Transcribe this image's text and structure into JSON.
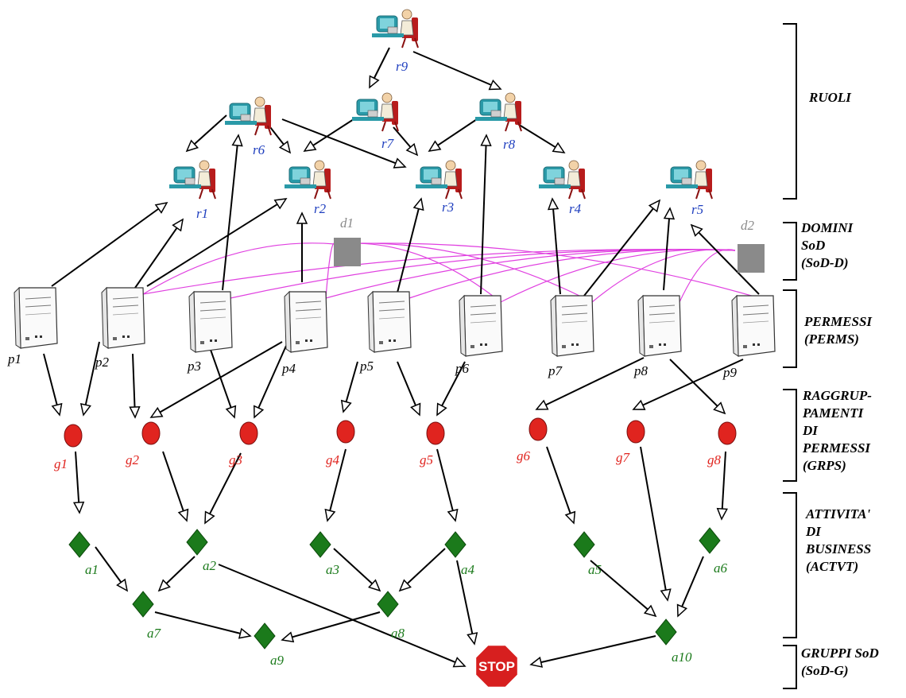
{
  "roles": [
    {
      "id": "r1",
      "label": "r1"
    },
    {
      "id": "r2",
      "label": "r2"
    },
    {
      "id": "r3",
      "label": "r3"
    },
    {
      "id": "r4",
      "label": "r4"
    },
    {
      "id": "r5",
      "label": "r5"
    },
    {
      "id": "r6",
      "label": "r6"
    },
    {
      "id": "r7",
      "label": "r7"
    },
    {
      "id": "r8",
      "label": "r8"
    },
    {
      "id": "r9",
      "label": "r9"
    }
  ],
  "domains": [
    {
      "id": "d1",
      "label": "d1"
    },
    {
      "id": "d2",
      "label": "d2"
    }
  ],
  "permissions": [
    {
      "id": "p1",
      "label": "p1"
    },
    {
      "id": "p2",
      "label": "p2"
    },
    {
      "id": "p3",
      "label": "p3"
    },
    {
      "id": "p4",
      "label": "p4"
    },
    {
      "id": "p5",
      "label": "p5"
    },
    {
      "id": "p6",
      "label": "p6"
    },
    {
      "id": "p7",
      "label": "p7"
    },
    {
      "id": "p8",
      "label": "p8"
    },
    {
      "id": "p9",
      "label": "p9"
    }
  ],
  "groups": [
    {
      "id": "g1",
      "label": "g1"
    },
    {
      "id": "g2",
      "label": "g2"
    },
    {
      "id": "g3",
      "label": "g3"
    },
    {
      "id": "g4",
      "label": "g4"
    },
    {
      "id": "g5",
      "label": "g5"
    },
    {
      "id": "g6",
      "label": "g6"
    },
    {
      "id": "g7",
      "label": "g7"
    },
    {
      "id": "g8",
      "label": "g8"
    }
  ],
  "activities": [
    {
      "id": "a1",
      "label": "a1"
    },
    {
      "id": "a2",
      "label": "a2"
    },
    {
      "id": "a3",
      "label": "a3"
    },
    {
      "id": "a4",
      "label": "a4"
    },
    {
      "id": "a5",
      "label": "a5"
    },
    {
      "id": "a6",
      "label": "a6"
    },
    {
      "id": "a7",
      "label": "a7"
    },
    {
      "id": "a8",
      "label": "a8"
    },
    {
      "id": "a9",
      "label": "a9"
    },
    {
      "id": "a10",
      "label": "a10"
    }
  ],
  "stop_sign": {
    "label": "STOP"
  },
  "sections": {
    "ruoli": "RUOLI",
    "domini": "DOMINI\nSoD\n(SoD-D)",
    "permessi": "PERMESSI\n(PERMS)",
    "raggruppamenti": "RAGGRUP-\nPAMENTI\nDI\nPERMESSI\n(GRPS)",
    "attivita": "ATTIVITA'\nDI\nBUSINESS\n(ACTVT)",
    "gruppi": "GRUPPI SoD\n(SoD-G)"
  },
  "colors": {
    "role_label": "#1f3fbf",
    "group_node": "#e0241f",
    "activity_node": "#1b7a1b",
    "domain_node": "#8a8a8a",
    "domain_link": "#e040e0",
    "stop": "#d71f1f"
  },
  "edges": [
    [
      "r9",
      "r7"
    ],
    [
      "r9",
      "r8"
    ],
    [
      "r6",
      "r1"
    ],
    [
      "r6",
      "r2"
    ],
    [
      "r6",
      "r3"
    ],
    [
      "r7",
      "r2"
    ],
    [
      "r7",
      "r3"
    ],
    [
      "r8",
      "r3"
    ],
    [
      "r8",
      "r4"
    ],
    [
      "p1",
      "r1"
    ],
    [
      "p2",
      "r1"
    ],
    [
      "p2",
      "r2"
    ],
    [
      "p3",
      "r6"
    ],
    [
      "p4",
      "r2"
    ],
    [
      "p5",
      "r3"
    ],
    [
      "p6",
      "r8"
    ],
    [
      "p7",
      "r4"
    ],
    [
      "p7",
      "r5"
    ],
    [
      "p8",
      "r5"
    ],
    [
      "p9",
      "r5"
    ],
    [
      "p1",
      "g1"
    ],
    [
      "p2",
      "g1"
    ],
    [
      "p2",
      "g2"
    ],
    [
      "p4",
      "g2"
    ],
    [
      "p3",
      "g3"
    ],
    [
      "p4",
      "g3"
    ],
    [
      "p5",
      "g4"
    ],
    [
      "p5",
      "g5"
    ],
    [
      "p6",
      "g5"
    ],
    [
      "p8",
      "g6"
    ],
    [
      "p9",
      "g7"
    ],
    [
      "p8",
      "g8"
    ],
    [
      "g1",
      "a1"
    ],
    [
      "g2",
      "a2"
    ],
    [
      "g3",
      "a2"
    ],
    [
      "g4",
      "a3"
    ],
    [
      "g5",
      "a4"
    ],
    [
      "g6",
      "a5"
    ],
    [
      "g7",
      "a10"
    ],
    [
      "g8",
      "a6"
    ],
    [
      "a1",
      "a7"
    ],
    [
      "a2",
      "a7"
    ],
    [
      "a3",
      "a8"
    ],
    [
      "a4",
      "a8"
    ],
    [
      "a5",
      "a10"
    ],
    [
      "a6",
      "a10"
    ],
    [
      "a7",
      "a9"
    ],
    [
      "a8",
      "a9"
    ],
    [
      "a2",
      "stop"
    ],
    [
      "a4",
      "stop"
    ],
    [
      "a10",
      "stop"
    ]
  ],
  "domain_links": [
    [
      "d1",
      "p2"
    ],
    [
      "d1",
      "p4"
    ],
    [
      "d1",
      "p6"
    ],
    [
      "d1",
      "p7"
    ],
    [
      "d1",
      "p9"
    ],
    [
      "d2",
      "p2"
    ],
    [
      "d2",
      "p3"
    ],
    [
      "d2",
      "p4"
    ],
    [
      "d2",
      "p5"
    ],
    [
      "d2",
      "p6"
    ],
    [
      "d2",
      "p7"
    ],
    [
      "d2",
      "p8"
    ]
  ]
}
